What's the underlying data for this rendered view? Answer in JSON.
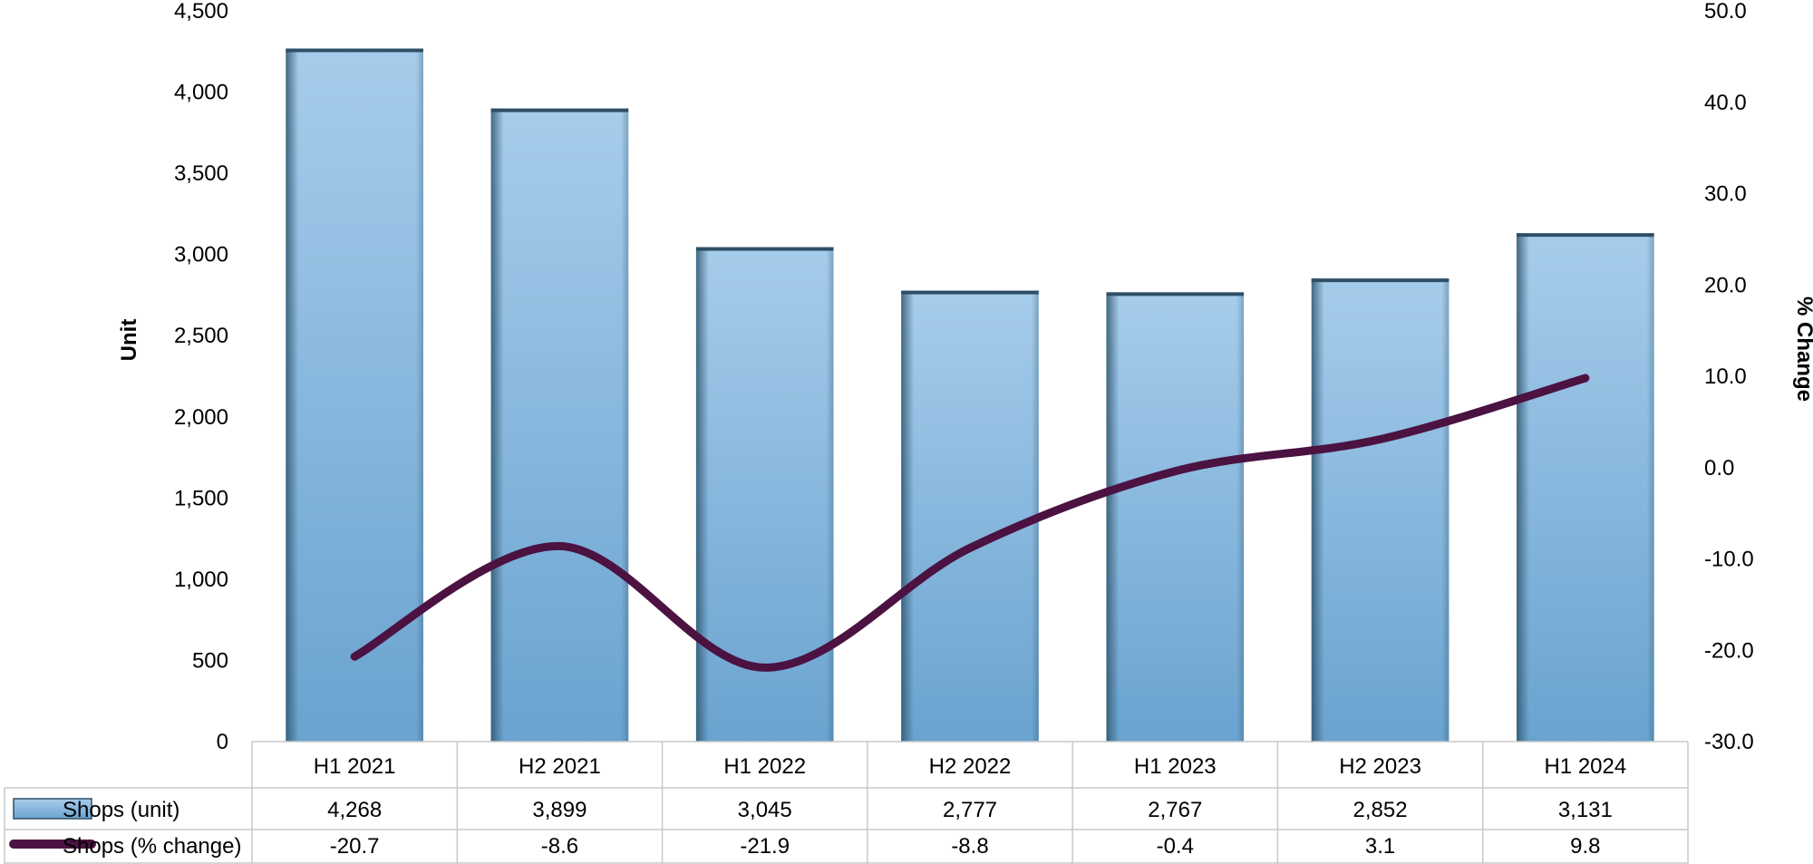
{
  "chart_data": {
    "type": "bar",
    "categories": [
      "H1 2021",
      "H2 2021",
      "H1 2022",
      "H2 2022",
      "H1 2023",
      "H2 2023",
      "H1 2024"
    ],
    "series": [
      {
        "name": "Shops (unit)",
        "type": "bar",
        "axis": "left",
        "values": [
          4268,
          3899,
          3045,
          2777,
          2767,
          2852,
          3131
        ],
        "labels": [
          "4,268",
          "3,899",
          "3,045",
          "2,777",
          "2,767",
          "2,852",
          "3,131"
        ],
        "color": "#7fb2dc"
      },
      {
        "name": "Shops (% change)",
        "type": "line",
        "axis": "right",
        "values": [
          -20.7,
          -8.6,
          -21.9,
          -8.8,
          -0.4,
          3.1,
          9.8
        ],
        "labels": [
          "-20.7",
          "-8.6",
          "-21.9",
          "-8.8",
          "-0.4",
          "3.1",
          "9.8"
        ],
        "color": "#4b1242"
      }
    ],
    "ylabel": "Unit",
    "y2label": "% Change",
    "ylim": [
      0,
      4500
    ],
    "y2lim": [
      -30,
      50
    ],
    "yticks": [
      "0",
      "500",
      "1,000",
      "1,500",
      "2,000",
      "2,500",
      "3,000",
      "3,500",
      "4,000",
      "4,500"
    ],
    "y2ticks": [
      "-30.0",
      "-20.0",
      "-10.0",
      "0.0",
      "10.0",
      "20.0",
      "30.0",
      "40.0",
      "50.0"
    ],
    "grid": false,
    "data_table": true
  }
}
